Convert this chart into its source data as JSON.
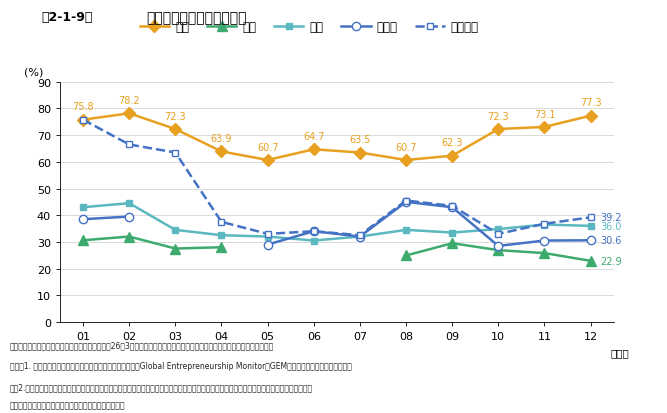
{
  "title": "起業無関心者の割合の推移",
  "header_label": "第2-1-9図",
  "ylabel": "(%)",
  "x_labels": [
    "01",
    "02",
    "03",
    "04",
    "05",
    "06",
    "07",
    "08",
    "09",
    "10",
    "11",
    "12"
  ],
  "ylim": [
    0,
    90
  ],
  "yticks": [
    0,
    10,
    20,
    30,
    40,
    50,
    60,
    70,
    80,
    90
  ],
  "japan": [
    75.8,
    78.2,
    72.3,
    63.9,
    60.7,
    64.7,
    63.5,
    60.7,
    62.3,
    72.3,
    73.1,
    77.3
  ],
  "usa": [
    30.6,
    32.0,
    27.5,
    28.0,
    null,
    null,
    null,
    24.9,
    29.5,
    26.9,
    25.8,
    22.9
  ],
  "uk": [
    43.0,
    44.5,
    34.5,
    32.5,
    32.0,
    30.5,
    32.0,
    34.5,
    33.5,
    34.8,
    36.5,
    36.0
  ],
  "germany": [
    38.5,
    39.5,
    null,
    null,
    29.0,
    34.0,
    32.0,
    45.0,
    43.0,
    28.5,
    30.5,
    30.6
  ],
  "france": [
    75.8,
    66.5,
    63.5,
    37.5,
    33.0,
    34.0,
    32.5,
    45.5,
    43.5,
    33.0,
    36.8,
    39.2
  ],
  "colors": {
    "japan": "#E8A020",
    "usa": "#3DAA6E",
    "uk": "#5BB8C1",
    "germany": "#4472C4",
    "france": "#4472C4"
  },
  "header_bg": "#F2B8B8",
  "bg_color": "#ffffff",
  "footnote1": "資料：「起業家精神に関する調査」報告書（平成26年3月（財）ベンチャーエンタープライズセンター）より中小企業庁作成",
  "footnote2": "（注）1. グローバル・アントレプレナーシップ・モニター（Global Entrepreneurship Monitor：GEM）調査の結果を表示している。",
  "footnote3": "　　2.ここでいう「起業無関心者の割合」とは、「起業活動浸透指数」、「事業機会認識指数」、「知識・能力・経験指数」の三つの指数につい",
  "footnote4": "　　　て、一つも該当しない者の割合を集計している。"
}
